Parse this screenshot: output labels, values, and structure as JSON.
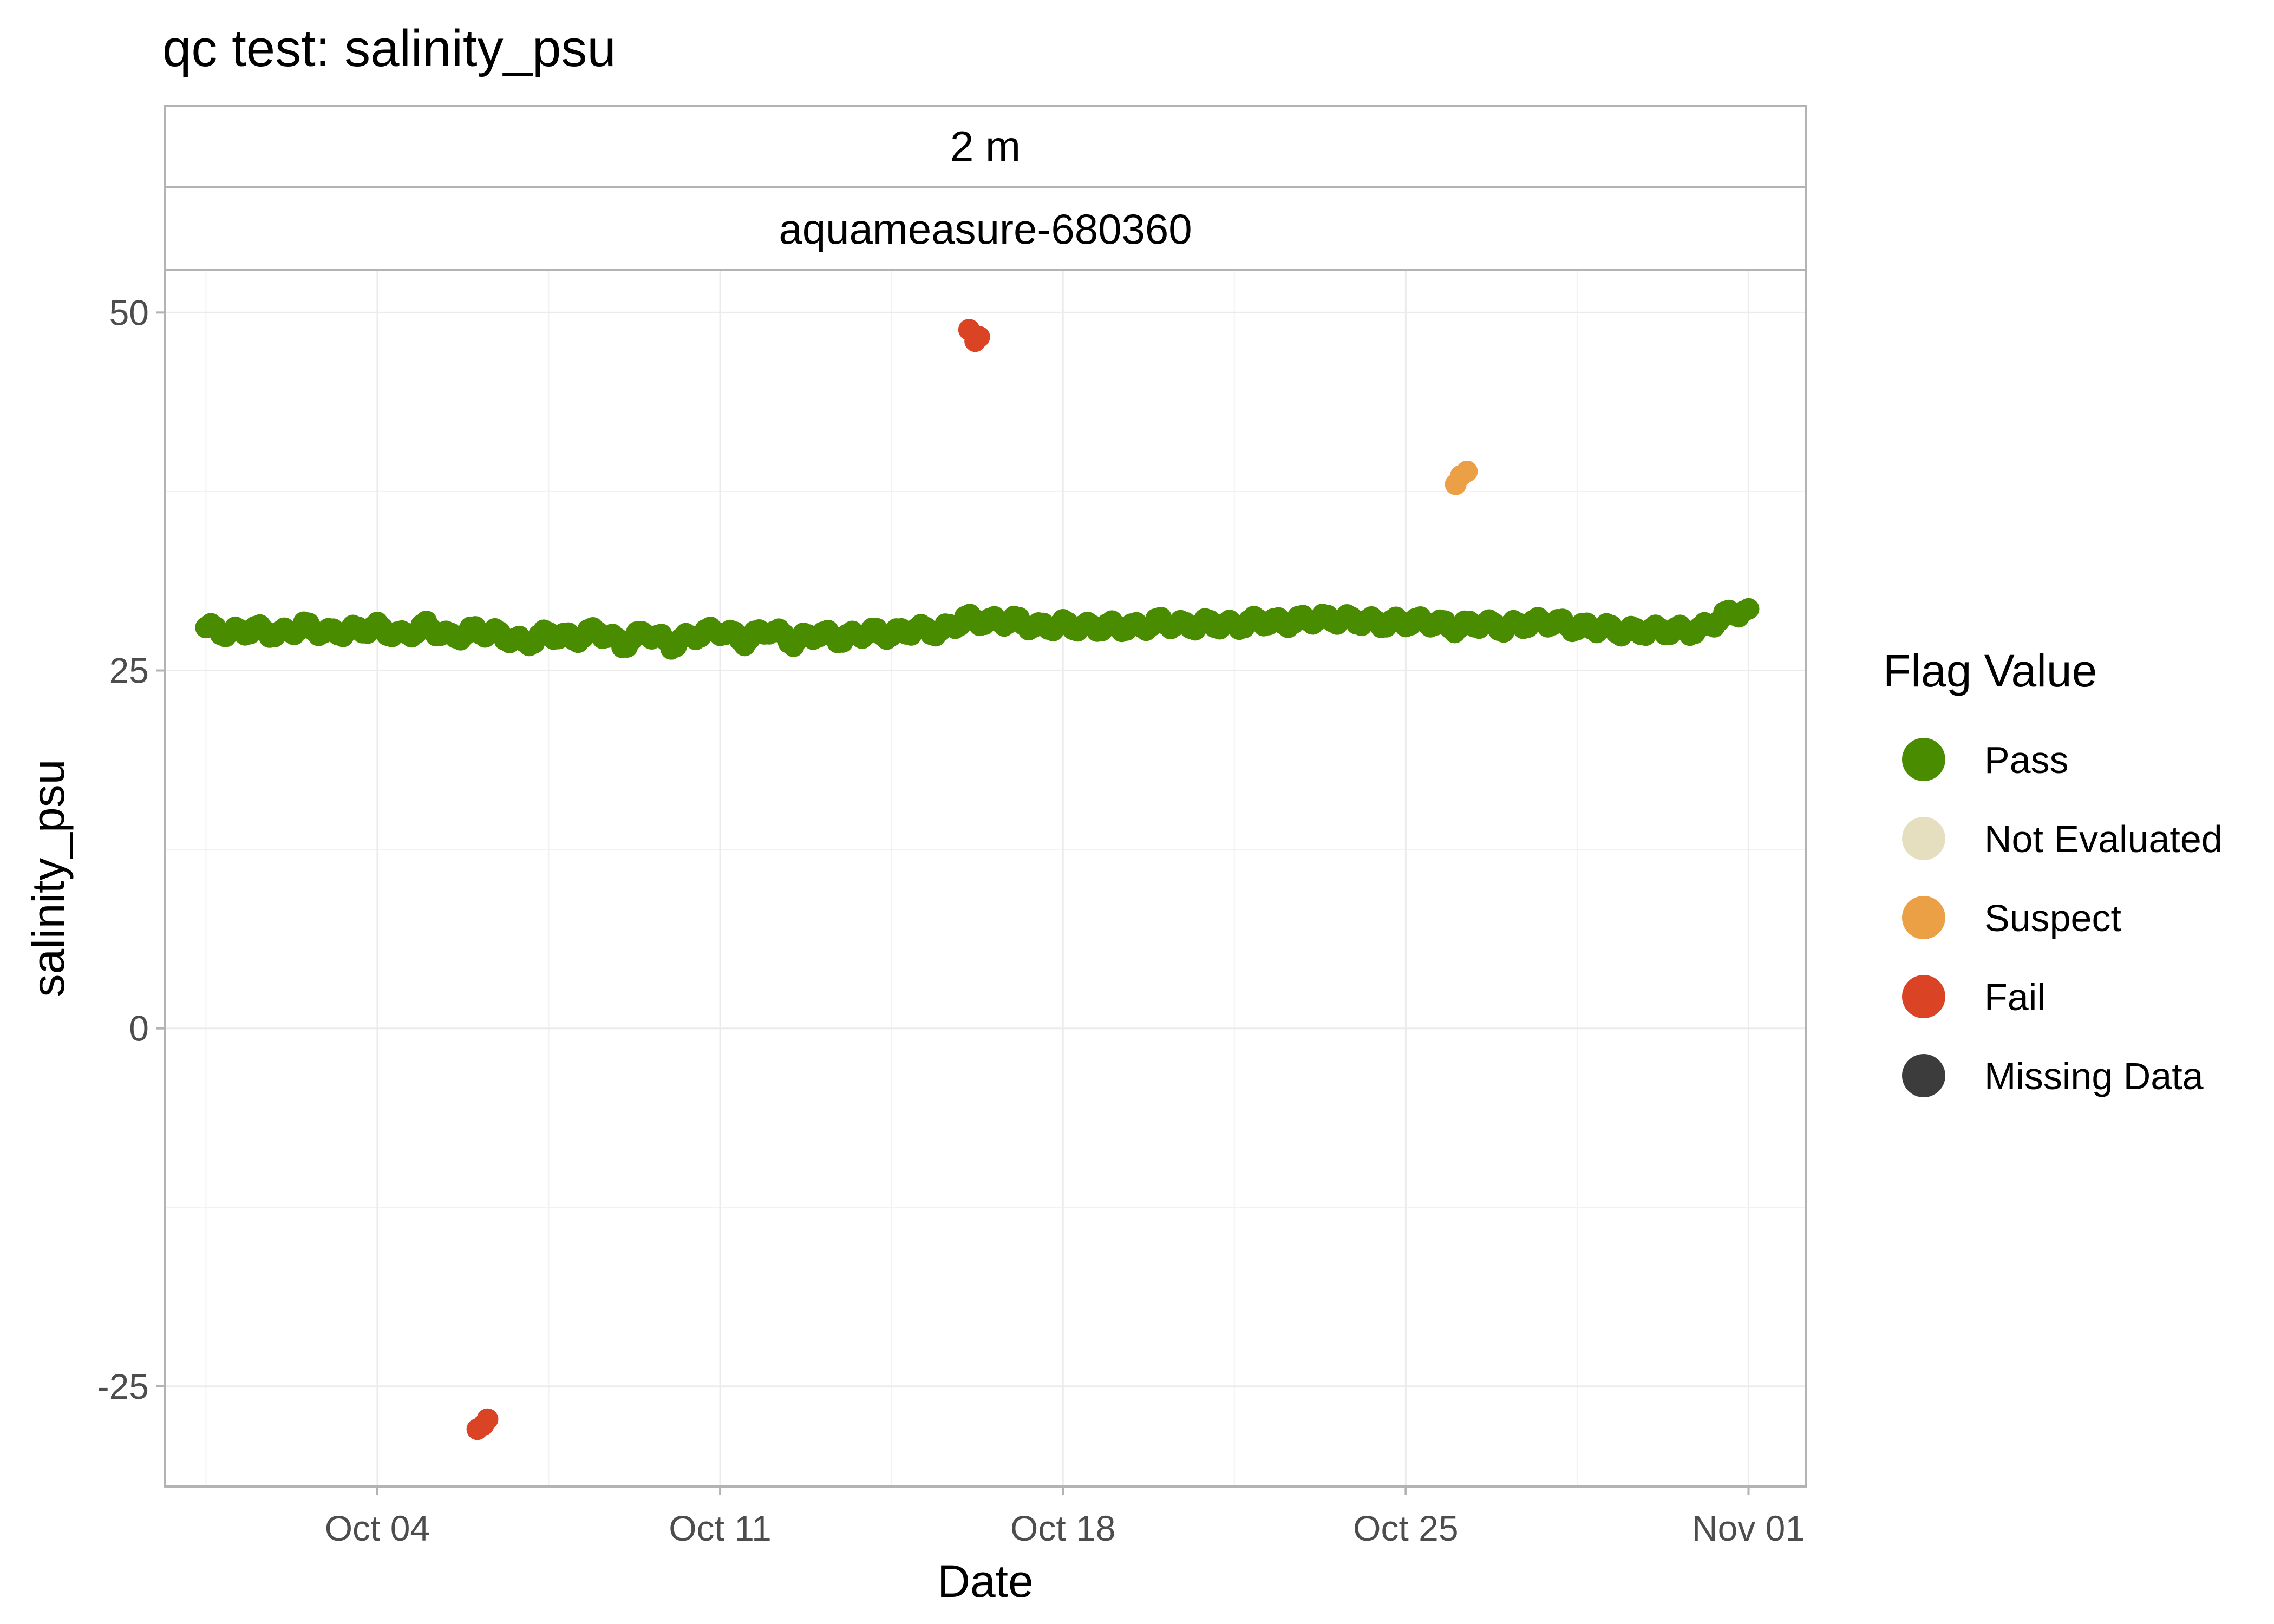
{
  "chart_data": {
    "type": "scatter",
    "title": "qc test: salinity_psu",
    "facets": [
      "2 m",
      "aquameasure-680360"
    ],
    "xlabel": "Date",
    "ylabel": "salinity_psu",
    "xlim": [
      "2024-09-29T16:00",
      "2024-11-02T04:00"
    ],
    "ylim": [
      -32,
      53
    ],
    "x_ticks": [
      "Oct 04",
      "Oct 11",
      "Oct 18",
      "Oct 25",
      "Nov 01"
    ],
    "x_tick_values": [
      "2024-10-04",
      "2024-10-11",
      "2024-10-18",
      "2024-10-25",
      "2024-11-01"
    ],
    "y_ticks": [
      "-25",
      "0",
      "25",
      "50"
    ],
    "y_tick_values": [
      -25,
      0,
      25,
      50
    ],
    "grid": true,
    "legend": {
      "title": "Flag Value",
      "position": "right"
    },
    "series": [
      {
        "name": "Pass",
        "color": "#4A8C00",
        "points": [
          [
            "2024-09-30T12:00",
            28.0
          ],
          [
            "2024-10-01T00:00",
            27.6
          ],
          [
            "2024-10-01T12:00",
            27.9
          ],
          [
            "2024-10-02T00:00",
            27.5
          ],
          [
            "2024-10-02T12:00",
            28.1
          ],
          [
            "2024-10-03T00:00",
            27.6
          ],
          [
            "2024-10-03T12:00",
            27.8
          ],
          [
            "2024-10-04T00:00",
            28.0
          ],
          [
            "2024-10-04T12:00",
            27.4
          ],
          [
            "2024-10-05T00:00",
            28.1
          ],
          [
            "2024-10-05T12:00",
            27.3
          ],
          [
            "2024-10-06T00:00",
            27.8
          ],
          [
            "2024-10-06T12:00",
            27.5
          ],
          [
            "2024-10-07T00:00",
            26.9
          ],
          [
            "2024-10-07T12:00",
            27.6
          ],
          [
            "2024-10-08T00:00",
            27.2
          ],
          [
            "2024-10-08T12:00",
            27.8
          ],
          [
            "2024-10-09T00:00",
            26.8
          ],
          [
            "2024-10-09T12:00",
            27.7
          ],
          [
            "2024-10-10T00:00",
            26.8
          ],
          [
            "2024-10-10T12:00",
            27.5
          ],
          [
            "2024-10-11T00:00",
            27.8
          ],
          [
            "2024-10-11T12:00",
            27.1
          ],
          [
            "2024-10-12T00:00",
            27.9
          ],
          [
            "2024-10-12T12:00",
            27.0
          ],
          [
            "2024-10-13T00:00",
            27.6
          ],
          [
            "2024-10-13T12:00",
            27.2
          ],
          [
            "2024-10-14T00:00",
            27.7
          ],
          [
            "2024-10-14T12:00",
            27.5
          ],
          [
            "2024-10-15T00:00",
            27.9
          ],
          [
            "2024-10-15T12:00",
            27.7
          ],
          [
            "2024-10-16T00:00",
            28.6
          ],
          [
            "2024-10-16T12:00",
            28.4
          ],
          [
            "2024-10-17T00:00",
            28.5
          ],
          [
            "2024-10-17T12:00",
            28.0
          ],
          [
            "2024-10-18T00:00",
            28.2
          ],
          [
            "2024-10-18T12:00",
            28.0
          ],
          [
            "2024-10-19T00:00",
            28.1
          ],
          [
            "2024-10-19T12:00",
            28.0
          ],
          [
            "2024-10-20T00:00",
            28.4
          ],
          [
            "2024-10-20T12:00",
            28.1
          ],
          [
            "2024-10-21T00:00",
            28.3
          ],
          [
            "2024-10-21T12:00",
            28.1
          ],
          [
            "2024-10-22T00:00",
            28.5
          ],
          [
            "2024-10-22T12:00",
            28.3
          ],
          [
            "2024-10-23T00:00",
            28.6
          ],
          [
            "2024-10-23T12:00",
            28.6
          ],
          [
            "2024-10-24T00:00",
            28.5
          ],
          [
            "2024-10-24T12:00",
            28.3
          ],
          [
            "2024-10-25T00:00",
            28.4
          ],
          [
            "2024-10-25T12:00",
            28.4
          ],
          [
            "2024-10-26T00:00",
            28.0
          ],
          [
            "2024-10-26T12:00",
            28.3
          ],
          [
            "2024-10-27T00:00",
            28.0
          ],
          [
            "2024-10-27T12:00",
            28.3
          ],
          [
            "2024-10-28T00:00",
            28.4
          ],
          [
            "2024-10-28T12:00",
            28.0
          ],
          [
            "2024-10-29T00:00",
            28.0
          ],
          [
            "2024-10-29T12:00",
            27.7
          ],
          [
            "2024-10-30T00:00",
            27.8
          ],
          [
            "2024-10-30T12:00",
            27.8
          ],
          [
            "2024-10-31T00:00",
            27.8
          ],
          [
            "2024-10-31T12:00",
            28.8
          ],
          [
            "2024-11-01T00:00",
            29.3
          ]
        ]
      },
      {
        "name": "Not Evaluated",
        "color": "#E5DFC0",
        "points": []
      },
      {
        "name": "Suspect",
        "color": "#EBA046",
        "points": [
          [
            "2024-10-26T00:30",
            38.0
          ],
          [
            "2024-10-26T03:00",
            38.6
          ],
          [
            "2024-10-26T06:00",
            38.9
          ]
        ]
      },
      {
        "name": "Fail",
        "color": "#DB4325",
        "points": [
          [
            "2024-10-06T01:00",
            -28.0
          ],
          [
            "2024-10-06T04:00",
            -27.7
          ],
          [
            "2024-10-06T06:00",
            -27.3
          ],
          [
            "2024-10-16T02:00",
            48.8
          ],
          [
            "2024-10-16T05:00",
            48.0
          ],
          [
            "2024-10-16T07:00",
            48.3
          ]
        ]
      },
      {
        "name": "Missing Data",
        "color": "#3C3C3C",
        "points": []
      }
    ]
  }
}
